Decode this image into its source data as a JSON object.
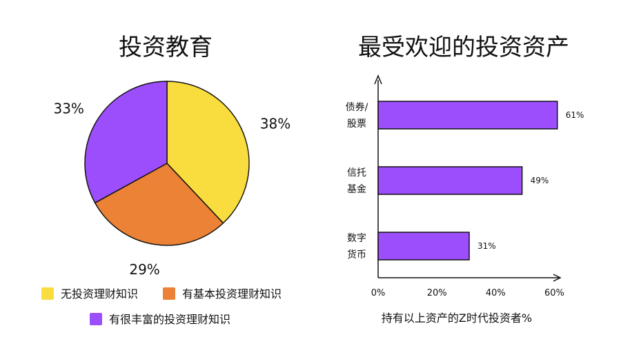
{
  "chart_data": [
    {
      "type": "pie",
      "title": "投资教育",
      "slices": [
        {
          "label": "无投资理财知识",
          "value": 38,
          "display": "38%",
          "color": "#f9dc3e"
        },
        {
          "label": "有基本投资理财知识",
          "value": 29,
          "display": "29%",
          "color": "#ec8236"
        },
        {
          "label": "有很丰富的投资理财知识",
          "value": 33,
          "display": "33%",
          "color": "#9d4efc"
        }
      ],
      "legend_placement": "bottom"
    },
    {
      "type": "bar",
      "orientation": "horizontal",
      "title": "最受欢迎的投资资产",
      "categories": [
        [
          "债券/",
          "股票"
        ],
        [
          "信托",
          "基金"
        ],
        [
          "数字",
          "货币"
        ]
      ],
      "values": [
        61,
        49,
        31
      ],
      "value_labels": [
        "61%",
        "49%",
        "31%"
      ],
      "color": "#9d4efc",
      "xlim": [
        0,
        62
      ],
      "xticks": [
        0,
        20,
        40,
        60
      ],
      "xtick_labels": [
        "0%",
        "20%",
        "40%",
        "60%"
      ],
      "xlabel": "持有以上资产的Z时代投资者%",
      "grid": false
    }
  ]
}
